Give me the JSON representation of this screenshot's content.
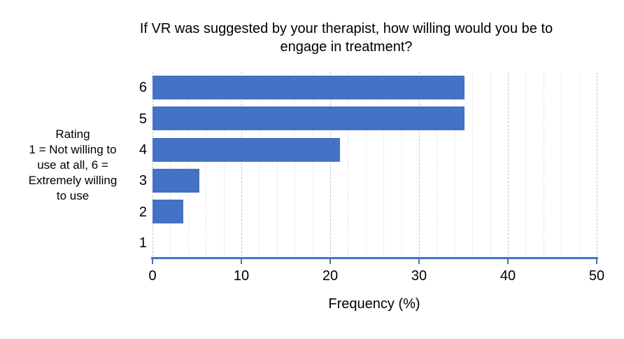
{
  "chart_data": {
    "type": "bar",
    "orientation": "horizontal",
    "title": "If VR was suggested by your therapist, how willing would you be to engage in treatment?",
    "title_lines": [
      "If VR was suggested by your therapist, how willing  would  you be to",
      "engage in treatment?"
    ],
    "categories": [
      "6",
      "5",
      "4",
      "3",
      "2",
      "1"
    ],
    "values": [
      35.1,
      35.1,
      21.1,
      5.3,
      3.5,
      0
    ],
    "xlabel": "Frequency (%)",
    "ylabel": "Rating 1 = Not willing to use at all, 6 = Extremely willing to use",
    "ylabel_lines": [
      "Rating",
      "1 = Not willing to",
      "use at all, 6 =",
      "Extremely willing",
      "to use"
    ],
    "xlim": [
      0,
      50
    ],
    "x_ticks": [
      0,
      10,
      20,
      30,
      40,
      50
    ],
    "x_minor_step": 2,
    "grid": "vertical gridlines on, minor every 2, major every 10, dashed",
    "legend": "none",
    "colors": {
      "bar": "#4472C4",
      "axis_line": "#4472C4",
      "gridline_major": "#c6c6c6",
      "gridline_minor": "#e4e4e4",
      "text": "#000000",
      "background": "#ffffff"
    }
  }
}
